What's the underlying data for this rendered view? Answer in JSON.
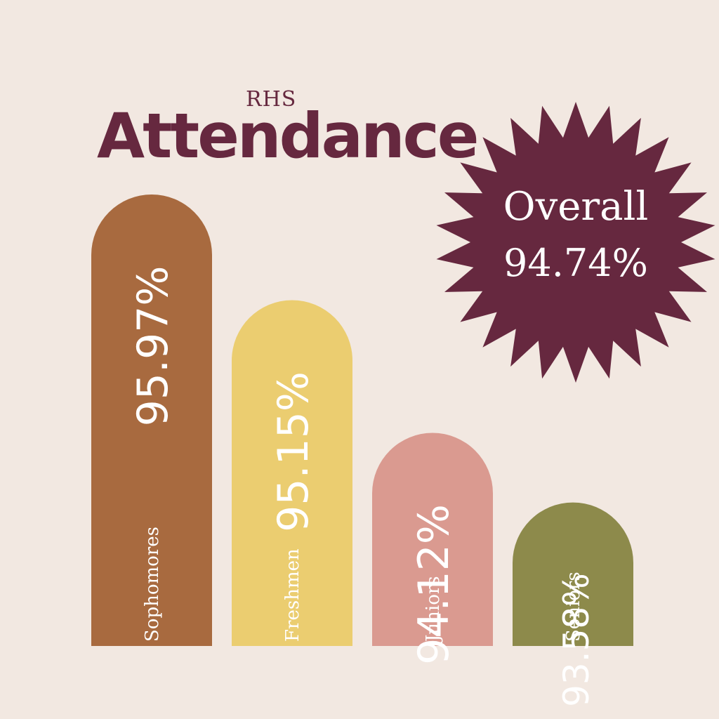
{
  "header": {
    "subtitle": "RHS",
    "title": "Attendance"
  },
  "badge": {
    "label": "Overall",
    "value": "94.74%",
    "color": "#66283f"
  },
  "colors": {
    "background": "#f2e8e1",
    "title": "#66283f",
    "text_on_bars": "#ffffff"
  },
  "chart_data": {
    "type": "bar",
    "title": "Attendance",
    "subtitle": "RHS",
    "categories": [
      "Sophomores",
      "Freshmen",
      "Juniors",
      "Seniors"
    ],
    "values": [
      95.97,
      95.15,
      94.12,
      93.58
    ],
    "value_labels": [
      "95.97%",
      "95.15%",
      "94.12%",
      "93.58%"
    ],
    "colors": [
      "#a86a3f",
      "#ebcd70",
      "#da9a90",
      "#8d8a4b"
    ],
    "overall": 94.74,
    "xlabel": "",
    "ylabel": "",
    "grid": false,
    "legend": "none"
  }
}
